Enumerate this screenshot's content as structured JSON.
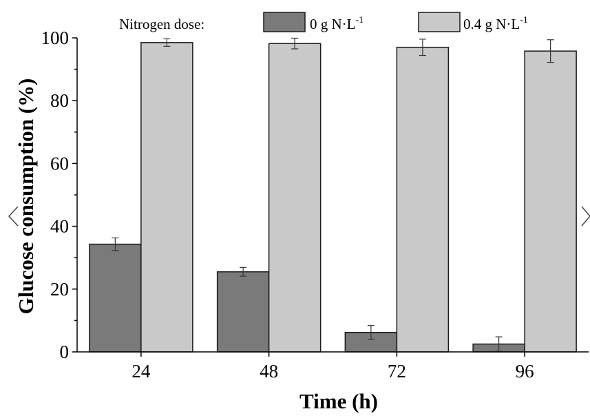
{
  "chart_data": {
    "type": "bar",
    "title": "",
    "xlabel": "Time (h)",
    "ylabel": "Glucose consumption (%)",
    "ylim": [
      0,
      100
    ],
    "yticks": [
      0,
      20,
      40,
      60,
      80,
      100
    ],
    "categories": [
      "24",
      "48",
      "72",
      "96"
    ],
    "legend": {
      "title": "Nitrogen dose:",
      "placement": "top"
    },
    "series": [
      {
        "name": "0 g N·L",
        "name_sup": "-1",
        "color": "#7a7a7a",
        "values": [
          34.3,
          25.5,
          6.2,
          2.5
        ],
        "errors": [
          2.0,
          1.4,
          2.2,
          2.3
        ]
      },
      {
        "name": "0.4 g N·L",
        "name_sup": "-1",
        "color": "#c9c9c9",
        "values": [
          98.5,
          98.2,
          97.0,
          95.8
        ],
        "errors": [
          1.2,
          1.7,
          2.6,
          3.6
        ]
      }
    ]
  },
  "nav": {
    "prev_icon": "chevron-left-icon",
    "next_icon": "chevron-right-icon"
  }
}
